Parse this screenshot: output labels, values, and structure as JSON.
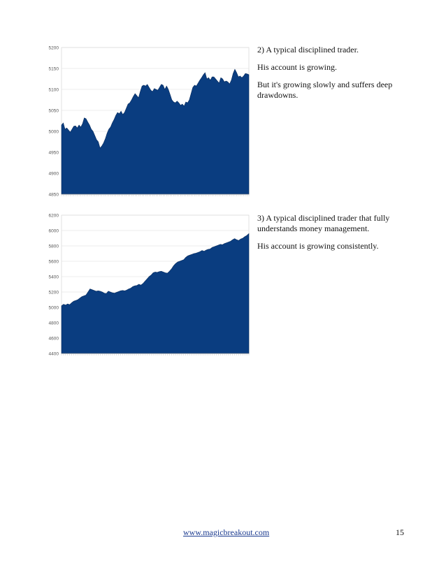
{
  "section_1": {
    "heading": "2) A typical disciplined trader.",
    "para_1": "His account is growing.",
    "para_2": "But it's growing slowly and suffers deep drawdowns."
  },
  "section_2": {
    "heading": "3) A typical disciplined trader that fully understands money management.",
    "para_1": "His account is growing consistently."
  },
  "footer": {
    "link_text": "www.magicbreakout.com",
    "page_number": "15"
  },
  "colors": {
    "area_fill": "#0a3d80",
    "grid": "#dddddd",
    "axis_text": "#555555"
  },
  "chart_data": [
    {
      "type": "area",
      "title": "",
      "xlabel": "",
      "ylabel": "",
      "ylim": [
        4850,
        5200
      ],
      "yticks": [
        4850,
        4900,
        4950,
        5000,
        5050,
        5100,
        5150,
        5200
      ],
      "grid": true,
      "series": [
        {
          "values": [
            5015,
            5020,
            5005,
            5008,
            5003,
            4998,
            5005,
            5012,
            5013,
            5008,
            5015,
            5010,
            5018,
            5032,
            5030,
            5022,
            5015,
            5005,
            5000,
            4990,
            4980,
            4975,
            4960,
            4965,
            4972,
            4982,
            4995,
            5005,
            5010,
            5020,
            5028,
            5038,
            5045,
            5042,
            5048,
            5040,
            5045,
            5055,
            5065,
            5068,
            5075,
            5083,
            5090,
            5085,
            5080,
            5095,
            5108,
            5110,
            5108,
            5112,
            5105,
            5098,
            5095,
            5102,
            5100,
            5098,
            5105,
            5112,
            5110,
            5100,
            5108,
            5100,
            5088,
            5075,
            5070,
            5068,
            5072,
            5068,
            5062,
            5065,
            5060,
            5070,
            5068,
            5075,
            5090,
            5105,
            5110,
            5108,
            5115,
            5122,
            5128,
            5135,
            5140,
            5125,
            5128,
            5122,
            5130,
            5130,
            5125,
            5120,
            5115,
            5128,
            5125,
            5118,
            5120,
            5118,
            5113,
            5122,
            5138,
            5148,
            5140,
            5130,
            5132,
            5128,
            5132,
            5138,
            5137,
            5135
          ]
        }
      ]
    },
    {
      "type": "area",
      "title": "",
      "xlabel": "",
      "ylabel": "",
      "ylim": [
        4400,
        6200
      ],
      "yticks": [
        4400,
        4600,
        4800,
        5000,
        5200,
        5400,
        5600,
        5800,
        6000,
        6200
      ],
      "grid": true,
      "series": [
        {
          "values": [
            5020,
            5040,
            5030,
            5045,
            5035,
            5060,
            5080,
            5090,
            5100,
            5120,
            5140,
            5150,
            5160,
            5200,
            5240,
            5230,
            5220,
            5210,
            5215,
            5210,
            5200,
            5185,
            5180,
            5210,
            5200,
            5190,
            5185,
            5195,
            5205,
            5215,
            5220,
            5215,
            5225,
            5240,
            5250,
            5270,
            5280,
            5285,
            5300,
            5290,
            5310,
            5340,
            5370,
            5400,
            5420,
            5450,
            5460,
            5455,
            5465,
            5470,
            5460,
            5450,
            5445,
            5470,
            5500,
            5540,
            5570,
            5590,
            5600,
            5610,
            5620,
            5650,
            5670,
            5680,
            5690,
            5700,
            5705,
            5715,
            5725,
            5740,
            5730,
            5745,
            5755,
            5760,
            5780,
            5790,
            5800,
            5810,
            5820,
            5815,
            5830,
            5840,
            5850,
            5860,
            5880,
            5895,
            5880,
            5870,
            5890,
            5900,
            5920,
            5935,
            5960
          ]
        }
      ]
    }
  ]
}
